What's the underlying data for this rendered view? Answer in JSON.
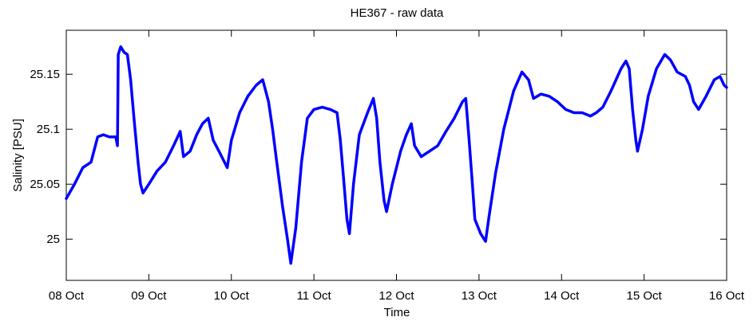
{
  "chart_data": {
    "type": "line",
    "title": "HE367 - raw data",
    "xlabel": "Time",
    "ylabel": "Salinity [PSU]",
    "x_unit": "days",
    "xlim": [
      0,
      8
    ],
    "ylim": [
      24.9625,
      25.19
    ],
    "grid": false,
    "x_ticks": [
      {
        "value": 0,
        "label": "08 Oct"
      },
      {
        "value": 1,
        "label": "09 Oct"
      },
      {
        "value": 2,
        "label": "10 Oct"
      },
      {
        "value": 3,
        "label": "11 Oct"
      },
      {
        "value": 4,
        "label": "12 Oct"
      },
      {
        "value": 5,
        "label": "13 Oct"
      },
      {
        "value": 6,
        "label": "14 Oct"
      },
      {
        "value": 7,
        "label": "15 Oct"
      },
      {
        "value": 8,
        "label": "16 Oct"
      }
    ],
    "y_ticks": [
      {
        "value": 25.0,
        "label": "25"
      },
      {
        "value": 25.05,
        "label": "25.05"
      },
      {
        "value": 25.1,
        "label": "25.1"
      },
      {
        "value": 25.15,
        "label": "25.15"
      }
    ],
    "series": [
      {
        "color": "#0000ff",
        "points": [
          [
            0.0,
            25.037
          ],
          [
            0.1,
            25.05
          ],
          [
            0.2,
            25.065
          ],
          [
            0.3,
            25.07
          ],
          [
            0.38,
            25.093
          ],
          [
            0.45,
            25.095
          ],
          [
            0.52,
            25.093
          ],
          [
            0.6,
            25.093
          ],
          [
            0.62,
            25.085
          ],
          [
            0.63,
            25.168
          ],
          [
            0.66,
            25.175
          ],
          [
            0.7,
            25.17
          ],
          [
            0.74,
            25.168
          ],
          [
            0.78,
            25.145
          ],
          [
            0.82,
            25.11
          ],
          [
            0.87,
            25.07
          ],
          [
            0.9,
            25.05
          ],
          [
            0.93,
            25.042
          ],
          [
            1.0,
            25.05
          ],
          [
            1.1,
            25.062
          ],
          [
            1.2,
            25.07
          ],
          [
            1.3,
            25.085
          ],
          [
            1.38,
            25.098
          ],
          [
            1.42,
            25.075
          ],
          [
            1.5,
            25.08
          ],
          [
            1.58,
            25.095
          ],
          [
            1.65,
            25.105
          ],
          [
            1.72,
            25.11
          ],
          [
            1.78,
            25.09
          ],
          [
            1.85,
            25.08
          ],
          [
            1.95,
            25.065
          ],
          [
            2.0,
            25.09
          ],
          [
            2.1,
            25.115
          ],
          [
            2.2,
            25.13
          ],
          [
            2.3,
            25.14
          ],
          [
            2.38,
            25.145
          ],
          [
            2.45,
            25.125
          ],
          [
            2.5,
            25.1
          ],
          [
            2.55,
            25.07
          ],
          [
            2.62,
            25.03
          ],
          [
            2.68,
            25.0
          ],
          [
            2.72,
            24.978
          ],
          [
            2.78,
            25.01
          ],
          [
            2.85,
            25.07
          ],
          [
            2.92,
            25.11
          ],
          [
            3.0,
            25.118
          ],
          [
            3.1,
            25.12
          ],
          [
            3.2,
            25.118
          ],
          [
            3.28,
            25.115
          ],
          [
            3.32,
            25.09
          ],
          [
            3.36,
            25.055
          ],
          [
            3.4,
            25.018
          ],
          [
            3.43,
            25.005
          ],
          [
            3.48,
            25.05
          ],
          [
            3.55,
            25.095
          ],
          [
            3.65,
            25.115
          ],
          [
            3.72,
            25.128
          ],
          [
            3.76,
            25.11
          ],
          [
            3.8,
            25.07
          ],
          [
            3.85,
            25.035
          ],
          [
            3.88,
            25.025
          ],
          [
            3.95,
            25.05
          ],
          [
            4.05,
            25.08
          ],
          [
            4.12,
            25.095
          ],
          [
            4.18,
            25.105
          ],
          [
            4.22,
            25.085
          ],
          [
            4.3,
            25.075
          ],
          [
            4.4,
            25.08
          ],
          [
            4.5,
            25.085
          ],
          [
            4.6,
            25.098
          ],
          [
            4.7,
            25.11
          ],
          [
            4.8,
            25.125
          ],
          [
            4.84,
            25.128
          ],
          [
            4.88,
            25.09
          ],
          [
            4.92,
            25.05
          ],
          [
            4.95,
            25.018
          ],
          [
            5.02,
            25.005
          ],
          [
            5.08,
            24.998
          ],
          [
            5.12,
            25.02
          ],
          [
            5.2,
            25.06
          ],
          [
            5.3,
            25.1
          ],
          [
            5.42,
            25.135
          ],
          [
            5.52,
            25.152
          ],
          [
            5.6,
            25.145
          ],
          [
            5.66,
            25.128
          ],
          [
            5.75,
            25.132
          ],
          [
            5.85,
            25.13
          ],
          [
            5.95,
            25.125
          ],
          [
            6.05,
            25.118
          ],
          [
            6.15,
            25.115
          ],
          [
            6.25,
            25.115
          ],
          [
            6.35,
            25.112
          ],
          [
            6.42,
            25.115
          ],
          [
            6.5,
            25.12
          ],
          [
            6.6,
            25.135
          ],
          [
            6.72,
            25.155
          ],
          [
            6.78,
            25.162
          ],
          [
            6.82,
            25.155
          ],
          [
            6.86,
            25.118
          ],
          [
            6.9,
            25.09
          ],
          [
            6.92,
            25.08
          ],
          [
            6.98,
            25.1
          ],
          [
            7.05,
            25.13
          ],
          [
            7.15,
            25.155
          ],
          [
            7.25,
            25.168
          ],
          [
            7.32,
            25.163
          ],
          [
            7.4,
            25.152
          ],
          [
            7.5,
            25.148
          ],
          [
            7.55,
            25.14
          ],
          [
            7.6,
            25.125
          ],
          [
            7.66,
            25.118
          ],
          [
            7.75,
            25.13
          ],
          [
            7.85,
            25.145
          ],
          [
            7.92,
            25.148
          ],
          [
            7.97,
            25.14
          ],
          [
            8.0,
            25.138
          ]
        ]
      }
    ]
  }
}
